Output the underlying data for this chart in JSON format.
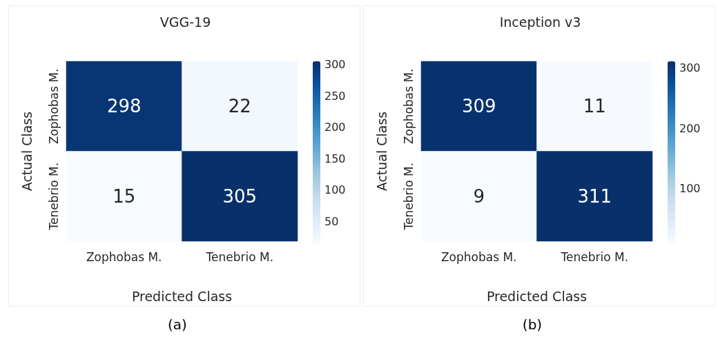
{
  "chart_data": [
    {
      "type": "heatmap",
      "title": "VGG-19",
      "xlabel": "Predicted Class",
      "ylabel": "Actual Class",
      "categories": [
        "Zophobas M.",
        "Tenebrio M."
      ],
      "y_categories": [
        "Zophobas M.",
        "Tenebrio M."
      ],
      "cells": [
        [
          298,
          22
        ],
        [
          15,
          305
        ]
      ],
      "data_labels": true,
      "clim": [
        15,
        305
      ],
      "cticks": [
        50,
        100,
        150,
        200,
        250,
        300
      ],
      "annotations": [
        "(a)"
      ]
    },
    {
      "type": "heatmap",
      "title": "Inception v3",
      "xlabel": "Predicted Class",
      "ylabel": "Actual Class",
      "categories": [
        "Zophobas M.",
        "Tenebrio M."
      ],
      "y_categories": [
        "Zophobas M.",
        "Tenebrio M."
      ],
      "cells": [
        [
          309,
          11
        ],
        [
          9,
          311
        ]
      ],
      "data_labels": true,
      "clim": [
        9,
        311
      ],
      "cticks": [
        100,
        200,
        300
      ],
      "annotations": [
        "(b)"
      ]
    }
  ]
}
